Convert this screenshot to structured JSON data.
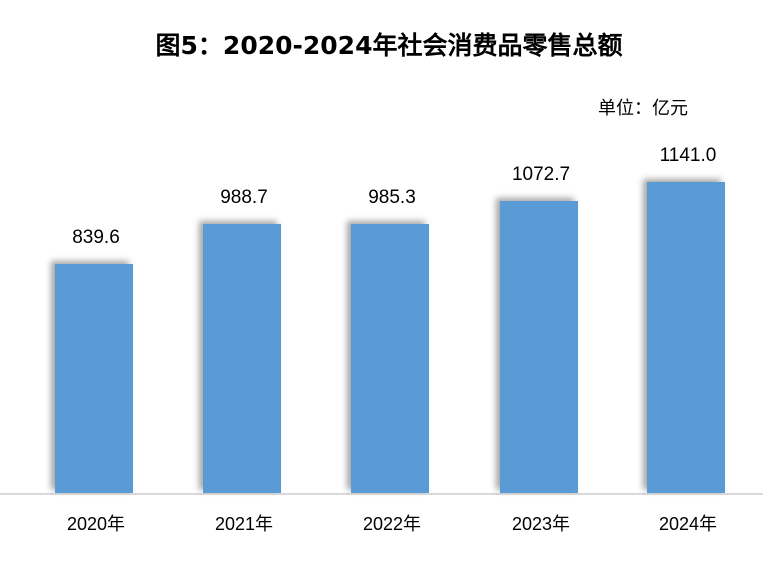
{
  "chart_data": {
    "type": "bar",
    "title": "图5：2020-2024年社会消费品零售总额",
    "unit_label": "单位：亿元",
    "xlabel": "",
    "ylabel": "",
    "categories": [
      "2020年",
      "2021年",
      "2022年",
      "2023年",
      "2024年"
    ],
    "values": [
      839.6,
      988.7,
      985.3,
      1072.7,
      1141.0
    ],
    "value_labels": [
      "839.6",
      "988.7",
      "985.3",
      "1072.7",
      "1141.0"
    ],
    "ylim": [
      0,
      1200
    ],
    "grid": false,
    "legend": null,
    "bar_color": "#5b9bd5",
    "axis_color": "#d9d9d9"
  }
}
